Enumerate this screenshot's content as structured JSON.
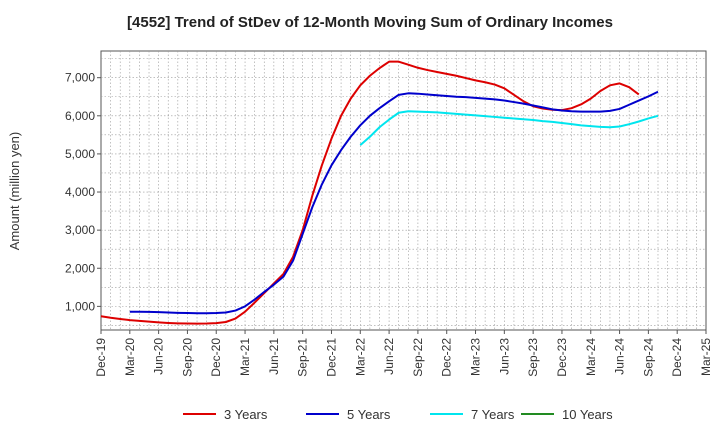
{
  "chart_data": {
    "type": "line",
    "title": "[4552]  Trend of StDev of 12-Month Moving Sum of Ordinary Incomes",
    "xlabel": "",
    "ylabel": "Amount (million yen)",
    "x_ticks": [
      "Dec-19",
      "Mar-20",
      "Jun-20",
      "Sep-20",
      "Dec-20",
      "Mar-21",
      "Jun-21",
      "Sep-21",
      "Dec-21",
      "Mar-22",
      "Jun-22",
      "Sep-22",
      "Dec-22",
      "Mar-23",
      "Jun-23",
      "Sep-23",
      "Dec-23",
      "Mar-24",
      "Jun-24",
      "Sep-24",
      "Dec-24",
      "Mar-25"
    ],
    "y_ticks": [
      1000,
      2000,
      3000,
      4000,
      5000,
      6000,
      7000
    ],
    "y_tick_labels": [
      "1,000",
      "2,000",
      "3,000",
      "4,000",
      "5,000",
      "6,000",
      "7,000"
    ],
    "ylim": [
      380,
      7700
    ],
    "grid": true,
    "legend_position": "bottom",
    "series": [
      {
        "name": "3 Years",
        "color": "#dd0000",
        "start": "Dec-19",
        "values": [
          740,
          700,
          670,
          640,
          620,
          600,
          580,
          565,
          555,
          550,
          548,
          550,
          560,
          590,
          680,
          860,
          1100,
          1350,
          1600,
          1850,
          2300,
          3000,
          3900,
          4700,
          5400,
          6000,
          6450,
          6800,
          7050,
          7250,
          7420,
          7420,
          7340,
          7260,
          7200,
          7150,
          7100,
          7050,
          6990,
          6930,
          6880,
          6820,
          6720,
          6550,
          6380,
          6250,
          6190,
          6160,
          6150,
          6200,
          6300,
          6450,
          6650,
          6800,
          6850,
          6750,
          6560
        ]
      },
      {
        "name": "5 Years",
        "color": "#0000cc",
        "start": "Mar-20",
        "values": [
          860,
          860,
          855,
          850,
          840,
          830,
          825,
          820,
          820,
          825,
          840,
          890,
          1000,
          1180,
          1380,
          1570,
          1780,
          2200,
          2900,
          3600,
          4200,
          4700,
          5100,
          5450,
          5750,
          6000,
          6200,
          6380,
          6550,
          6590,
          6580,
          6560,
          6540,
          6520,
          6500,
          6490,
          6470,
          6450,
          6430,
          6400,
          6360,
          6320,
          6270,
          6220,
          6170,
          6140,
          6120,
          6110,
          6110,
          6110,
          6130,
          6180,
          6290,
          6400,
          6510,
          6630
        ]
      },
      {
        "name": "7 Years",
        "color": "#00e5ee",
        "start": "Mar-22",
        "values": [
          5230,
          5450,
          5700,
          5900,
          6080,
          6120,
          6110,
          6100,
          6090,
          6070,
          6050,
          6030,
          6010,
          5990,
          5970,
          5950,
          5930,
          5910,
          5890,
          5860,
          5840,
          5810,
          5780,
          5750,
          5730,
          5710,
          5700,
          5720,
          5780,
          5850,
          5930,
          6000
        ]
      },
      {
        "name": "10 Years",
        "color": "#228b22",
        "start": "Mar-25",
        "values": []
      }
    ]
  }
}
